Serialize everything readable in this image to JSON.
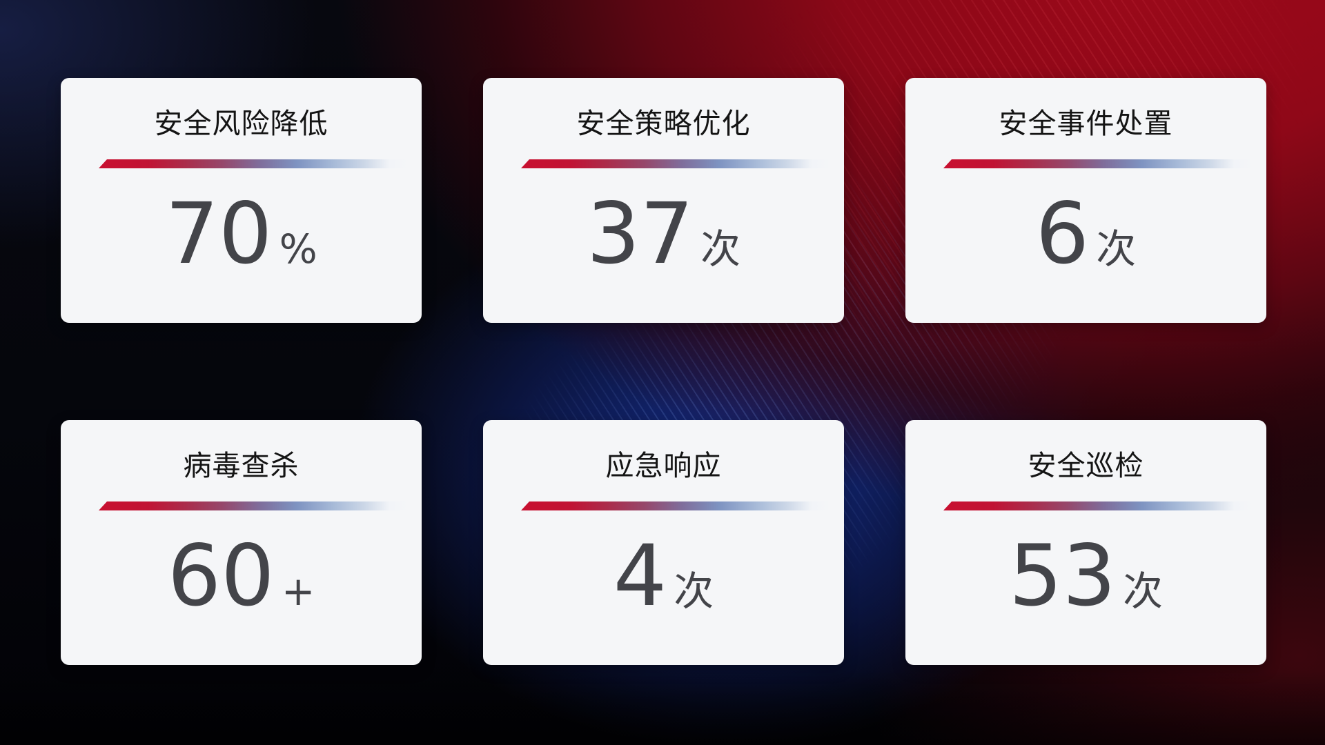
{
  "cards": [
    {
      "title": "安全风险降低",
      "value": "70",
      "unit": "%"
    },
    {
      "title": "安全策略优化",
      "value": "37",
      "unit": "次"
    },
    {
      "title": "安全事件处置",
      "value": "6",
      "unit": "次"
    },
    {
      "title": "病毒查杀",
      "value": "60",
      "unit": "+"
    },
    {
      "title": "应急响应",
      "value": "4",
      "unit": "次"
    },
    {
      "title": "安全巡检",
      "value": "53",
      "unit": "次"
    }
  ],
  "theme": {
    "card_bg": "#f5f6f8",
    "title_color": "#141414",
    "value_color": "#434449",
    "accent_red": "#c81030",
    "accent_blue_gray": "#a7bad8",
    "bg_base": "#05060c",
    "bg_red_glow": "#9e091a",
    "bg_blue_glow": "#173094"
  }
}
